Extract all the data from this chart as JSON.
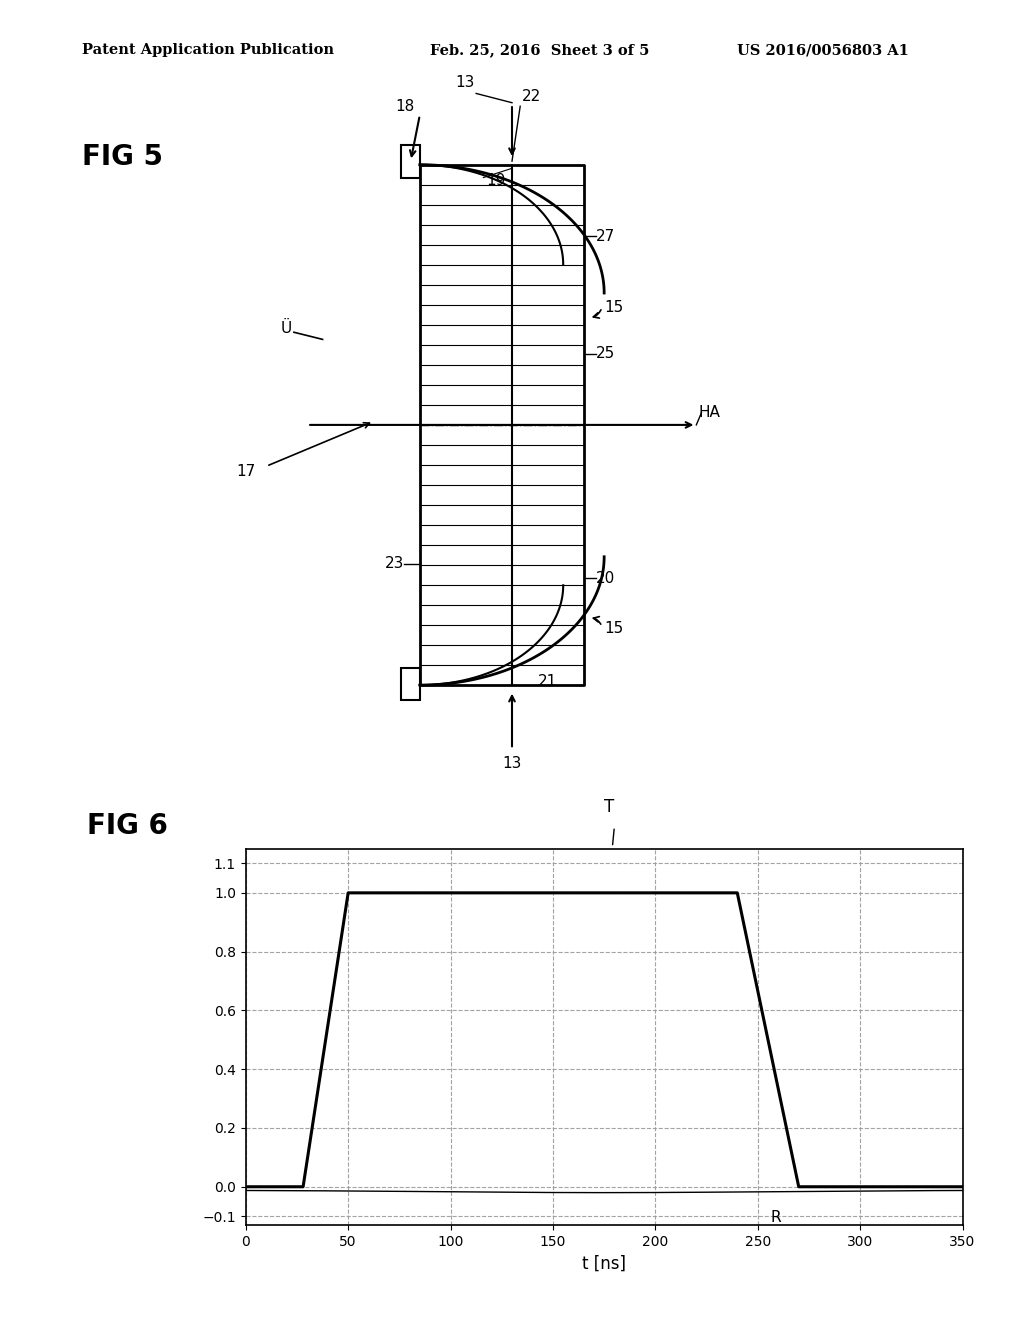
{
  "bg_color": "#ffffff",
  "header_left": "Patent Application Publication",
  "header_mid": "Feb. 25, 2016  Sheet 3 of 5",
  "header_right": "US 2016/0056803 A1",
  "fig5_label": "FIG 5",
  "fig6_label": "FIG 6",
  "fig5_notes": {
    "label_13_top": "13",
    "label_18": "18",
    "label_22": "22",
    "label_19": "19",
    "label_27": "27",
    "label_15_top": "15",
    "label_25": "25",
    "label_HA": "HA",
    "label_U": "Ü",
    "label_17": "17",
    "label_23": "23",
    "label_20": "20",
    "label_15_bot": "15",
    "label_21": "21",
    "label_13_bot": "13"
  },
  "fig6_xlabel": "t [ns]",
  "fig6_T_label": "T",
  "fig6_R_label": "R",
  "fig6_yticks": [
    -0.1,
    0,
    0.2,
    0.4,
    0.6,
    0.8,
    1.0,
    1.1
  ],
  "fig6_xticks": [
    0,
    50,
    100,
    150,
    200,
    250,
    300,
    350
  ],
  "fig6_ylim": [
    -0.13,
    1.15
  ],
  "fig6_xlim": [
    0,
    350
  ],
  "line_color": "#000000",
  "grid_color": "#999999",
  "grid_style": "--"
}
